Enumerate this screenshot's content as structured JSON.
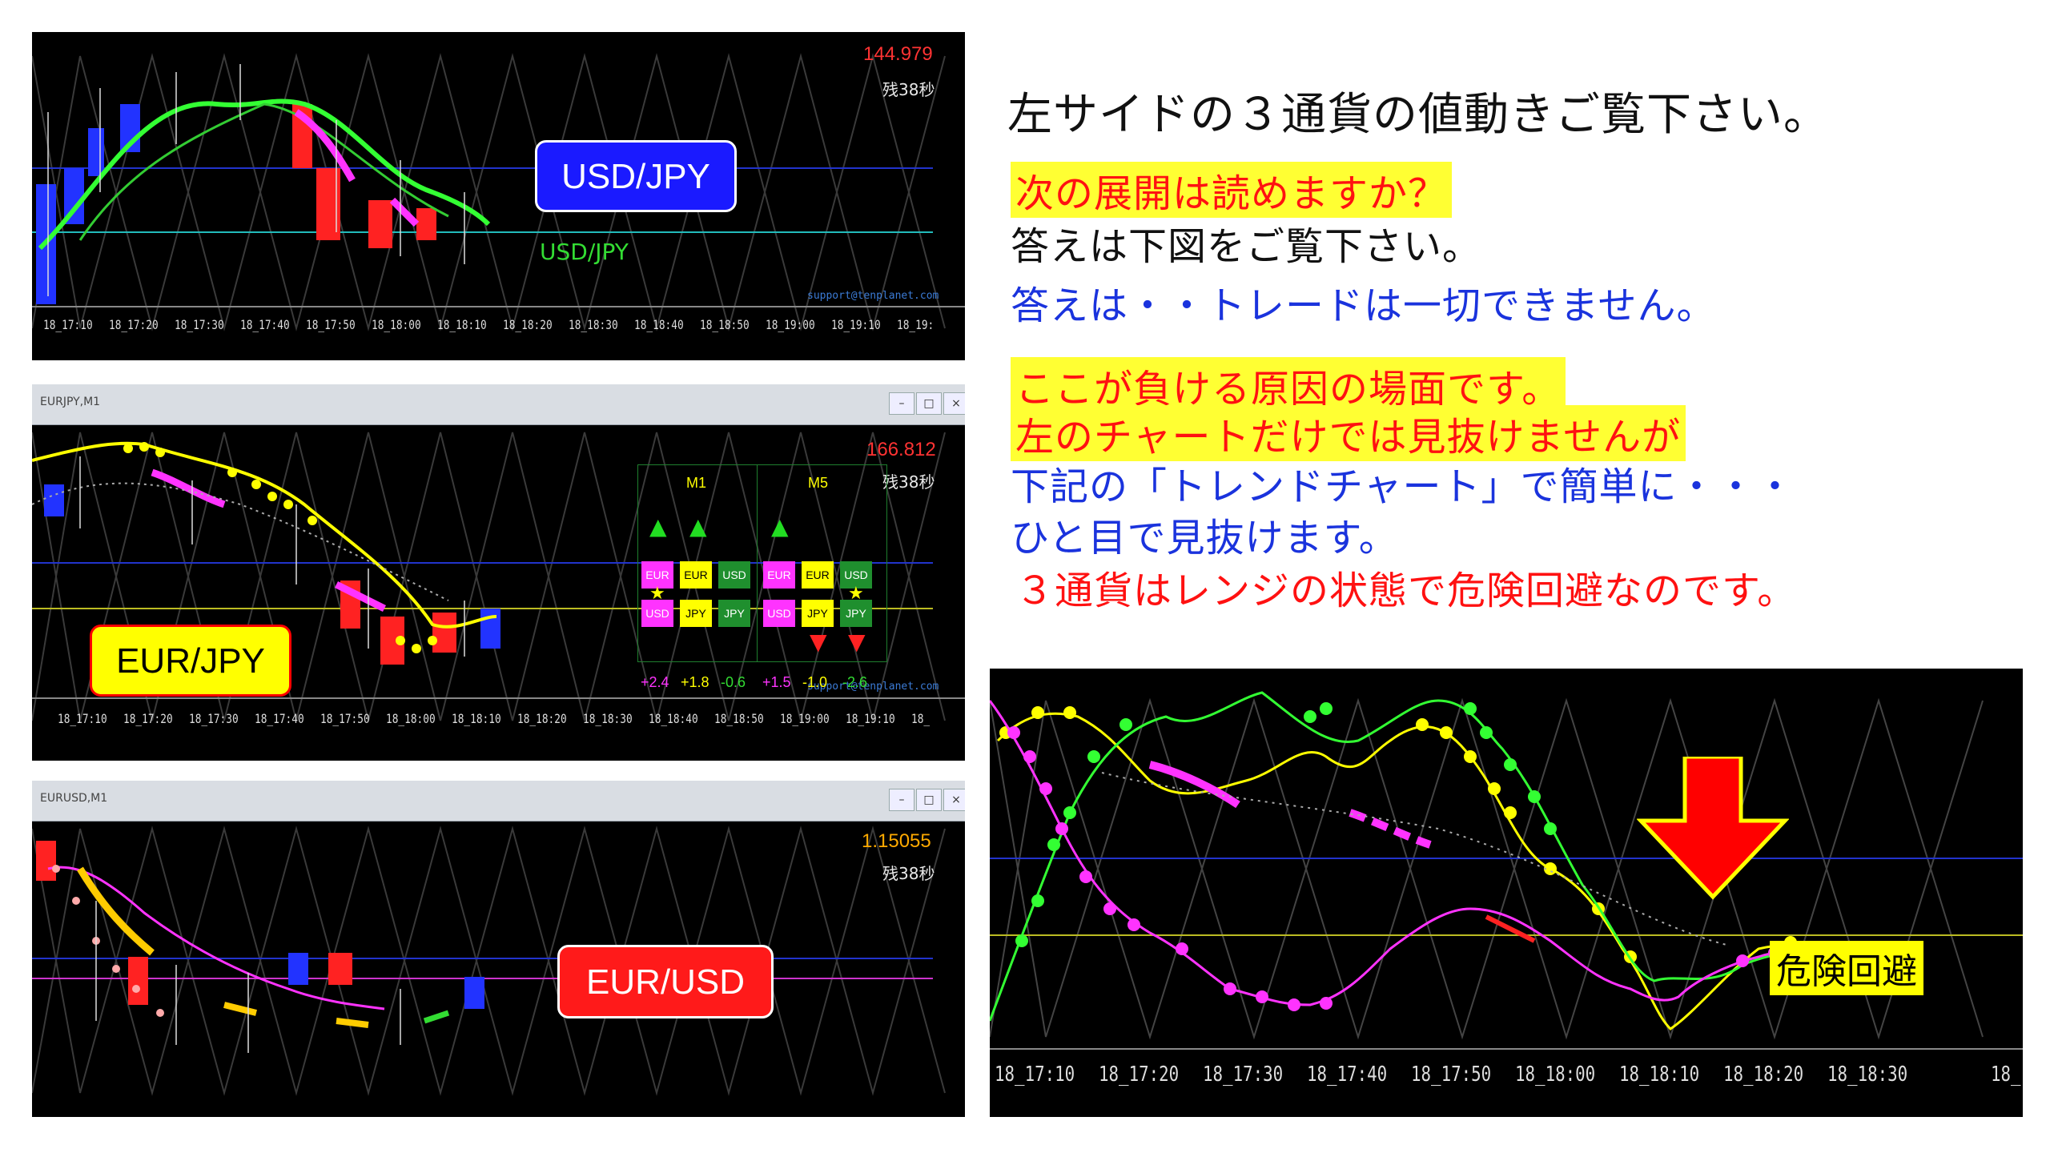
{
  "panel1": {
    "price": "144.979",
    "remain": "残38秒",
    "badge": "USD/JPY",
    "overlay_label": "USD/JPY",
    "support": "support@tenplanet.com",
    "times": [
      "18_17:10",
      "18_17:20",
      "18_17:30",
      "18_17:40",
      "18_17:50",
      "18_18:00",
      "18_18:10",
      "18_18:20",
      "18_18:30",
      "18_18:40",
      "18_18:50",
      "18_19:00",
      "18_19:10",
      "18_19:"
    ]
  },
  "panel2": {
    "window_title": "EURJPY,M1",
    "price": "166.812",
    "remain": "残38秒",
    "badge": "EUR/JPY",
    "support": "support@tenplanet.com",
    "times": [
      "18_17:10",
      "18_17:20",
      "18_17:30",
      "18_17:40",
      "18_17:50",
      "18_18:00",
      "18_18:10",
      "18_18:20",
      "18_18:30",
      "18_18:40",
      "18_18:50",
      "18_19:00",
      "18_19:10",
      "18_"
    ],
    "trend": {
      "m1": {
        "title": "M1",
        "top": [
          "EUR",
          "EUR",
          "USD"
        ],
        "bottom": [
          "USD",
          "JPY",
          "JPY"
        ],
        "values": [
          "+2.4",
          "+1.8",
          "-0.6"
        ]
      },
      "m5": {
        "title": "M5",
        "top": [
          "EUR",
          "EUR",
          "USD"
        ],
        "bottom": [
          "USD",
          "JPY",
          "JPY"
        ],
        "values": [
          "+1.5",
          "-1.0",
          "-2.6"
        ]
      },
      "colors": {
        "eur": "#ff33ff",
        "usd": "#ff33ff",
        "jpy": "#ffff00",
        "green_cell": "#1f8f2e"
      }
    }
  },
  "panel3": {
    "window_title": "EURUSD,M1",
    "price": "1.15055",
    "remain": "残38秒",
    "badge": "EUR/USD"
  },
  "text": {
    "headline": "左サイドの３通貨の値動きご覧下さい。",
    "q1": "次の展開は読めますか？",
    "a1": "答えは下図をご覧下さい。",
    "a2": "答えは・・トレードは一切できません。",
    "r1": "ここが負ける原因の場面です。",
    "r2": "左のチャートだけでは見抜けませんが",
    "r3": "下記の「トレンドチャート」で簡単に・・・",
    "r4": "ひと目で見抜けます。",
    "r5": "３通貨はレンジの状態で危険回避なのです。"
  },
  "trend_chart": {
    "label": "危険回避",
    "times": [
      "18_17:10",
      "18_17:20",
      "18_17:30",
      "18_17:40",
      "18_17:50",
      "18_18:00",
      "18_18:10",
      "18_18:20",
      "18_18:30",
      "18_"
    ]
  },
  "colors": {
    "usd_badge": "#1a1aff",
    "eurusd_badge": "#ff1a1a",
    "eurjpy_badge": "#ffff00",
    "price_red": "#ff3333",
    "price_orange": "#ffaa00",
    "line_green": "#33ff33",
    "line_yellow": "#ffff00",
    "line_magenta": "#ff33ff",
    "arrow_red": "#ff0000"
  }
}
